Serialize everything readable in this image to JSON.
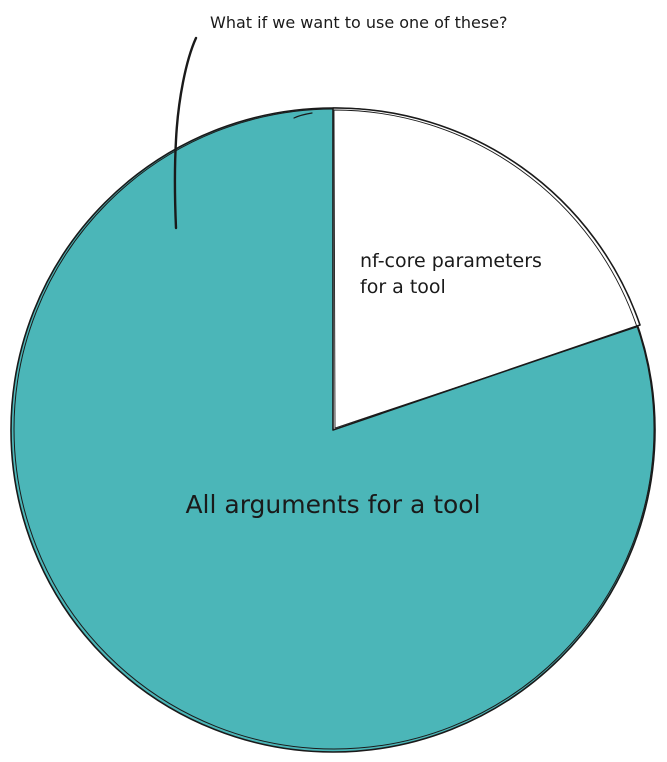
{
  "colors": {
    "pie_main": "#4bb6b8",
    "pie_slice": "#ffffff",
    "stroke": "#1a1a1a"
  },
  "annotation": {
    "text": "What if we want to use one of these?"
  },
  "pie": {
    "slices": [
      {
        "label": "All arguments for a tool",
        "fraction": 0.8
      },
      {
        "label_lines": [
          "nf-core parameters",
          "for a tool"
        ],
        "fraction": 0.2
      }
    ]
  }
}
